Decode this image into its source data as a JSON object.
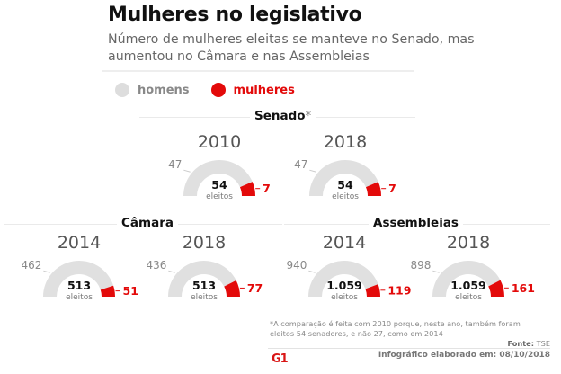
{
  "header": {
    "title": "Mulheres no legislativo",
    "subtitle": "Número de mulheres eleitas se manteve no Senado, mas aumentou no Câmara e nas Assembleias"
  },
  "legend": {
    "items": [
      {
        "label": "homens",
        "color": "#dddddd",
        "text_color": "#888888"
      },
      {
        "label": "mulheres",
        "color": "#e30a0a",
        "text_color": "#e30a0a"
      }
    ]
  },
  "colors": {
    "men": "#e0e0e0",
    "women": "#e30a0a",
    "men_label": "#888888",
    "women_label": "#e30a0a"
  },
  "chart_data": {
    "type": "gauge",
    "title": "Mulheres no legislativo",
    "unit_label": "eleitos",
    "sections": [
      {
        "name": "Senado",
        "note_marker": "*",
        "gauges": [
          {
            "year": "2010",
            "total": 54,
            "total_label": "54",
            "men": 47,
            "women": 7
          },
          {
            "year": "2018",
            "total": 54,
            "total_label": "54",
            "men": 47,
            "women": 7
          }
        ]
      },
      {
        "name": "Câmara",
        "note_marker": "",
        "gauges": [
          {
            "year": "2014",
            "total": 513,
            "total_label": "513",
            "men": 462,
            "women": 51
          },
          {
            "year": "2018",
            "total": 513,
            "total_label": "513",
            "men": 436,
            "women": 77
          }
        ]
      },
      {
        "name": "Assembleias",
        "note_marker": "",
        "gauges": [
          {
            "year": "2014",
            "total": 1059,
            "total_label": "1.059",
            "men": 940,
            "women": 119
          },
          {
            "year": "2018",
            "total": 1059,
            "total_label": "1.059",
            "men": 898,
            "women": 161
          }
        ]
      }
    ]
  },
  "footer": {
    "footnote": "*A comparação é feita com 2010 porque, neste ano, também foram eleitos 54 senadores, e não 27, como em 2014",
    "source_label": "Fonte:",
    "source_value": "TSE",
    "credit": "Infográfico elaborado em: 08/10/2018",
    "logo": "G1"
  }
}
